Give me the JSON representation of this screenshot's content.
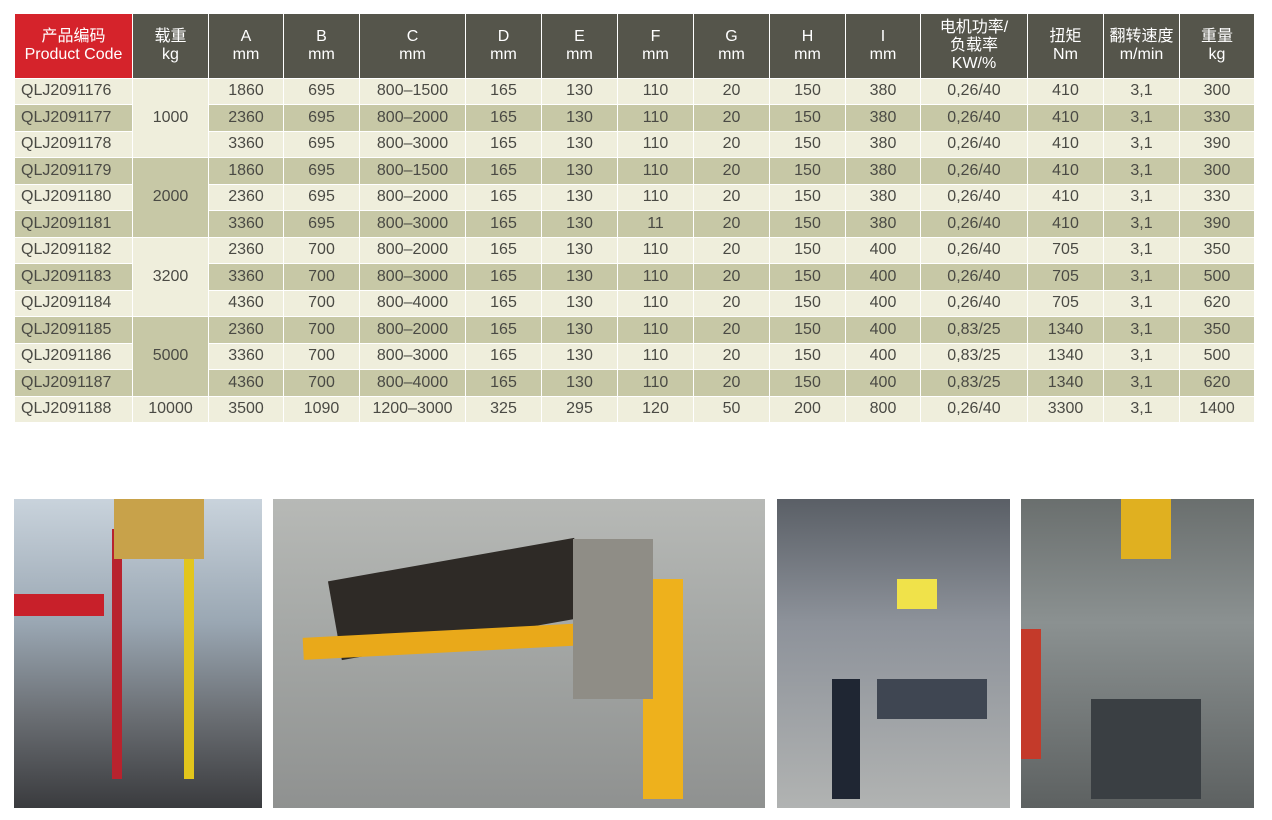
{
  "colors": {
    "header": "#55554b",
    "header_accent": "#d5232b",
    "row_light": "#efeedc",
    "row_dark": "#c7c8a6"
  },
  "headers": [
    [
      "产品编码",
      "Product Code"
    ],
    [
      "载重",
      "kg"
    ],
    [
      "A",
      "mm"
    ],
    [
      "B",
      "mm"
    ],
    [
      "C",
      "mm"
    ],
    [
      "D",
      "mm"
    ],
    [
      "E",
      "mm"
    ],
    [
      "F",
      "mm"
    ],
    [
      "G",
      "mm"
    ],
    [
      "H",
      "mm"
    ],
    [
      "I",
      "mm"
    ],
    [
      "电机功率/",
      "负载率",
      "KW/%"
    ],
    [
      "扭矩",
      "Nm"
    ],
    [
      "翻转速度",
      "m/min"
    ],
    [
      "重量",
      "kg"
    ]
  ],
  "load_groups": [
    {
      "value": "1000",
      "rows": 3
    },
    {
      "value": "2000",
      "rows": 3
    },
    {
      "value": "3200",
      "rows": 3
    },
    {
      "value": "5000",
      "rows": 3
    },
    {
      "value": "10000",
      "rows": 1
    }
  ],
  "rows": [
    [
      "QLJ2091176",
      "1860",
      "695",
      "800–1500",
      "165",
      "130",
      "110",
      "20",
      "150",
      "380",
      "0,26/40",
      "410",
      "3,1",
      "300"
    ],
    [
      "QLJ2091177",
      "2360",
      "695",
      "800–2000",
      "165",
      "130",
      "110",
      "20",
      "150",
      "380",
      "0,26/40",
      "410",
      "3,1",
      "330"
    ],
    [
      "QLJ2091178",
      "3360",
      "695",
      "800–3000",
      "165",
      "130",
      "110",
      "20",
      "150",
      "380",
      "0,26/40",
      "410",
      "3,1",
      "390"
    ],
    [
      "QLJ2091179",
      "1860",
      "695",
      "800–1500",
      "165",
      "130",
      "110",
      "20",
      "150",
      "380",
      "0,26/40",
      "410",
      "3,1",
      "300"
    ],
    [
      "QLJ2091180",
      "2360",
      "695",
      "800–2000",
      "165",
      "130",
      "110",
      "20",
      "150",
      "380",
      "0,26/40",
      "410",
      "3,1",
      "330"
    ],
    [
      "QLJ2091181",
      "3360",
      "695",
      "800–3000",
      "165",
      "130",
      "11",
      "20",
      "150",
      "380",
      "0,26/40",
      "410",
      "3,1",
      "390"
    ],
    [
      "QLJ2091182",
      "2360",
      "700",
      "800–2000",
      "165",
      "130",
      "110",
      "20",
      "150",
      "400",
      "0,26/40",
      "705",
      "3,1",
      "350"
    ],
    [
      "QLJ2091183",
      "3360",
      "700",
      "800–3000",
      "165",
      "130",
      "110",
      "20",
      "150",
      "400",
      "0,26/40",
      "705",
      "3,1",
      "500"
    ],
    [
      "QLJ2091184",
      "4360",
      "700",
      "800–4000",
      "165",
      "130",
      "110",
      "20",
      "150",
      "400",
      "0,26/40",
      "705",
      "3,1",
      "620"
    ],
    [
      "QLJ2091185",
      "2360",
      "700",
      "800–2000",
      "165",
      "130",
      "110",
      "20",
      "150",
      "400",
      "0,83/25",
      "1340",
      "3,1",
      "350"
    ],
    [
      "QLJ2091186",
      "3360",
      "700",
      "800–3000",
      "165",
      "130",
      "110",
      "20",
      "150",
      "400",
      "0,83/25",
      "1340",
      "3,1",
      "500"
    ],
    [
      "QLJ2091187",
      "4360",
      "700",
      "800–4000",
      "165",
      "130",
      "110",
      "20",
      "150",
      "400",
      "0,83/25",
      "1340",
      "3,1",
      "620"
    ],
    [
      "QLJ2091188",
      "3500",
      "1090",
      "1200–3000",
      "325",
      "295",
      "120",
      "50",
      "200",
      "800",
      "0,26/40",
      "3300",
      "3,1",
      "1400"
    ]
  ],
  "photos": [
    {
      "name": "photo-crane-lift"
    },
    {
      "name": "photo-engine-block-turnover"
    },
    {
      "name": "photo-frame-lift"
    },
    {
      "name": "photo-workshop-crane"
    }
  ]
}
